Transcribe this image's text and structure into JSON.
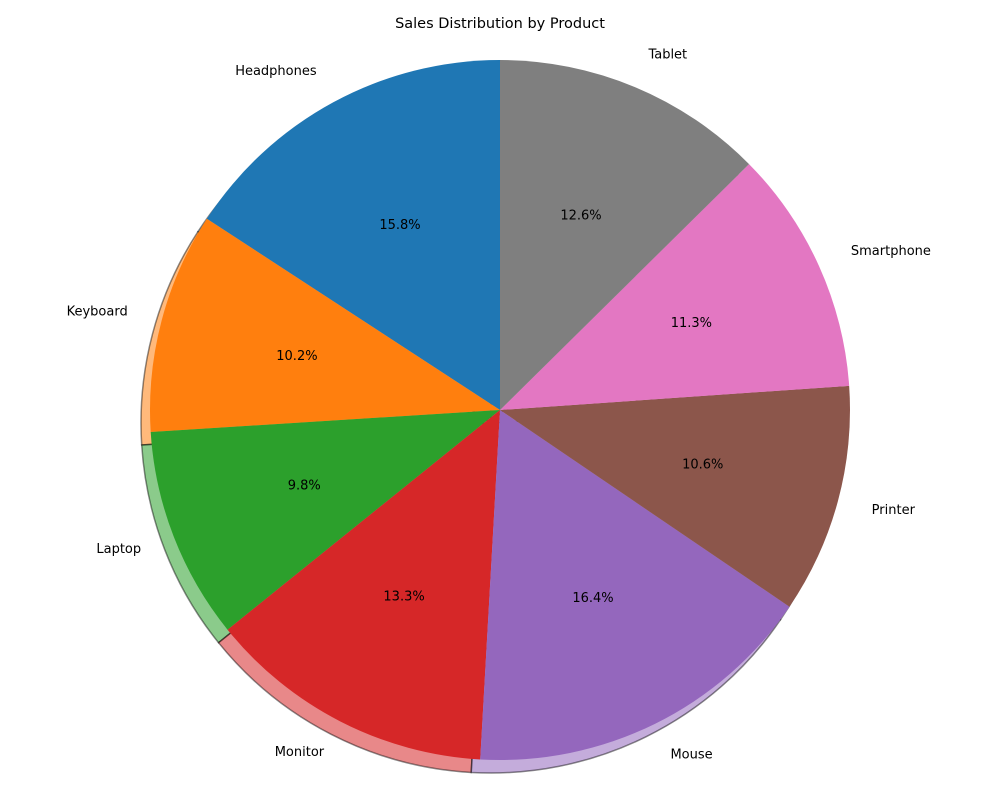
{
  "chart_data": {
    "type": "pie",
    "title": "Sales Distribution by Product",
    "start_angle_deg": 90,
    "direction": "counterclockwise",
    "shadow": true,
    "categories": [
      "Headphones",
      "Keyboard",
      "Laptop",
      "Monitor",
      "Mouse",
      "Printer",
      "Smartphone",
      "Tablet"
    ],
    "values": [
      15.8,
      10.2,
      9.8,
      13.3,
      16.4,
      10.6,
      11.3,
      12.6
    ],
    "labels": [
      "15.8%",
      "10.2%",
      "9.8%",
      "13.3%",
      "16.4%",
      "10.6%",
      "11.3%",
      "12.6%"
    ],
    "colors": [
      "#1f77b4",
      "#ff7f0e",
      "#2ca02c",
      "#d62728",
      "#9467bd",
      "#8c564b",
      "#e377c2",
      "#7f7f7f"
    ]
  }
}
